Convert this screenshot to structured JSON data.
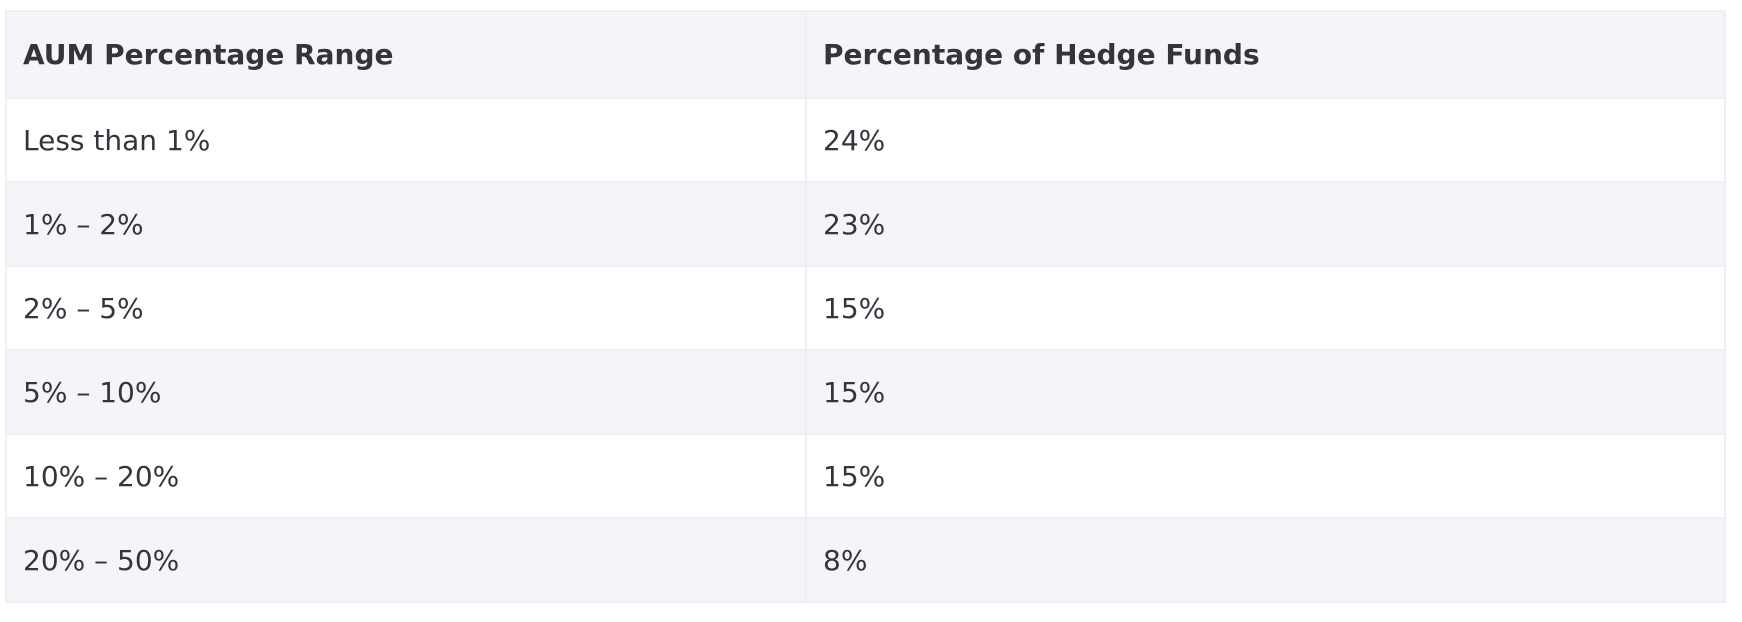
{
  "table": {
    "header": [
      "AUM Percentage Range",
      "Percentage of Hedge Funds"
    ],
    "rows": [
      [
        "Less than 1%",
        "24%"
      ],
      [
        "1% – 2%",
        "23%"
      ],
      [
        "2% – 5%",
        "15%"
      ],
      [
        "5% – 10%",
        "15%"
      ],
      [
        "10% – 20%",
        "15%"
      ],
      [
        "20% – 50%",
        "8%"
      ]
    ]
  }
}
